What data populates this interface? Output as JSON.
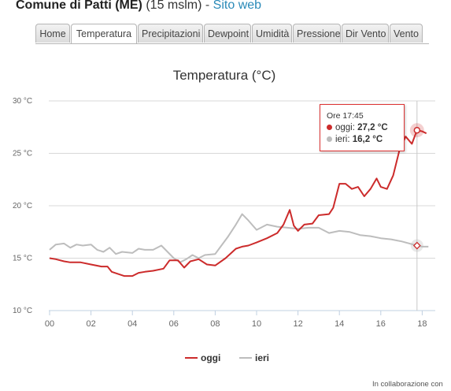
{
  "header": {
    "name": "Comune di Patti (ME)",
    "altitude": "(15 mslm)",
    "separator": " - ",
    "link": "Sito web"
  },
  "tabs": [
    {
      "label": "Home",
      "active": false
    },
    {
      "label": "Temperatura",
      "active": true
    },
    {
      "label": "Precipitazioni",
      "active": false
    },
    {
      "label": "Dewpoint",
      "active": false
    },
    {
      "label": "Umidità",
      "active": false
    },
    {
      "label": "Pressione",
      "active": false
    },
    {
      "label": "Dir Vento",
      "active": false
    },
    {
      "label": "Vento",
      "active": false
    }
  ],
  "tooltip": {
    "time": "Ore 17:45",
    "rows": [
      {
        "name": "oggi",
        "value": "27,2 °C"
      },
      {
        "name": "ieri",
        "value": "16,2 °C"
      }
    ]
  },
  "credit": "In collaborazione con",
  "colors": {
    "oggi": "#cc2b2b",
    "ieri": "#bdbdbd",
    "link": "#2a8ab8"
  },
  "chart_data": {
    "type": "line",
    "title": "Temperatura (°C)",
    "ylim": [
      10,
      30
    ],
    "y_ticks": [
      "10 °C",
      "15 °C",
      "20 °C",
      "25 °C",
      "30 °C"
    ],
    "x_ticks": [
      "00",
      "02",
      "04",
      "06",
      "08",
      "10",
      "12",
      "14",
      "16",
      "18"
    ],
    "grid": true,
    "legend": "bottom-center",
    "crosshair_x": 17.75,
    "series": [
      {
        "name": "oggi",
        "color": "#cc2b2b",
        "x": [
          0,
          0.3,
          0.7,
          1,
          1.5,
          2,
          2.5,
          2.8,
          3,
          3.3,
          3.6,
          4,
          4.3,
          4.6,
          5,
          5.5,
          5.8,
          6.2,
          6.5,
          6.8,
          7.2,
          7.6,
          8,
          8.5,
          9,
          9.3,
          9.6,
          10,
          10.5,
          11,
          11.3,
          11.6,
          11.8,
          12,
          12.3,
          12.7,
          13,
          13.5,
          13.7,
          14,
          14.3,
          14.6,
          14.9,
          15.2,
          15.5,
          15.8,
          16,
          16.3,
          16.6,
          16.9,
          17.2,
          17.5,
          17.75,
          18,
          18.2
        ],
        "y": [
          15.0,
          14.9,
          14.7,
          14.6,
          14.6,
          14.4,
          14.2,
          14.2,
          13.7,
          13.5,
          13.3,
          13.3,
          13.6,
          13.7,
          13.8,
          14.0,
          14.8,
          14.8,
          14.1,
          14.7,
          14.9,
          14.4,
          14.3,
          15.0,
          15.9,
          16.1,
          16.2,
          16.5,
          16.9,
          17.4,
          18.2,
          19.6,
          18.1,
          17.6,
          18.2,
          18.3,
          19.1,
          19.2,
          19.8,
          22.1,
          22.1,
          21.6,
          21.8,
          20.9,
          21.6,
          22.6,
          21.8,
          21.6,
          22.9,
          25.3,
          26.6,
          25.9,
          27.2,
          27.1,
          26.9
        ]
      },
      {
        "name": "ieri",
        "color": "#bdbdbd",
        "x": [
          0,
          0.3,
          0.7,
          1,
          1.3,
          1.6,
          2,
          2.3,
          2.6,
          2.9,
          3.2,
          3.5,
          4,
          4.3,
          4.6,
          5,
          5.4,
          5.7,
          6,
          6.3,
          6.6,
          6.9,
          7.2,
          7.5,
          8,
          8.3,
          8.6,
          9,
          9.3,
          9.6,
          10,
          10.5,
          11,
          11.5,
          12,
          12.5,
          13,
          13.5,
          14,
          14.5,
          15,
          15.5,
          16,
          16.5,
          17,
          17.75,
          18,
          18.3
        ],
        "y": [
          15.8,
          16.3,
          16.4,
          16.0,
          16.3,
          16.2,
          16.3,
          15.8,
          15.6,
          16.0,
          15.4,
          15.6,
          15.5,
          15.9,
          15.8,
          15.8,
          16.2,
          15.6,
          15.0,
          14.6,
          14.9,
          15.3,
          15.0,
          15.3,
          15.4,
          16.2,
          17.0,
          18.2,
          19.2,
          18.6,
          17.7,
          18.2,
          18.0,
          17.9,
          17.8,
          17.9,
          17.9,
          17.4,
          17.6,
          17.5,
          17.2,
          17.1,
          16.9,
          16.8,
          16.6,
          16.2,
          16.1,
          16.1
        ]
      }
    ]
  }
}
